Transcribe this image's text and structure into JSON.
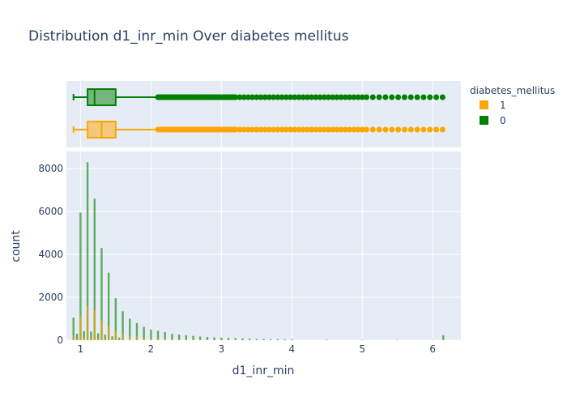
{
  "chart_data": {
    "type": "histogram",
    "title": "Distribution d1_inr_min Over diabetes mellitus",
    "xlabel": "d1_inr_min",
    "ylabel": "count",
    "xlim": [
      0.8,
      6.4
    ],
    "ylim": [
      0,
      8800
    ],
    "x_ticks": [
      1,
      2,
      3,
      4,
      5,
      6
    ],
    "y_ticks": [
      0,
      2000,
      4000,
      6000,
      8000
    ],
    "legend": {
      "title": "diabetes_mellitus",
      "position": "top-right",
      "entries": [
        "1",
        "0"
      ]
    },
    "colors": {
      "1": "#FFA500",
      "0": "#008000",
      "plot_bg": "#E5ECF6",
      "grid": "#FFFFFF",
      "text": "#2A3F5F"
    },
    "histogram": {
      "bin_edges_note": "0.05 width bins",
      "x": [
        0.9,
        0.95,
        1.0,
        1.05,
        1.1,
        1.15,
        1.2,
        1.25,
        1.3,
        1.35,
        1.4,
        1.45,
        1.5,
        1.55,
        1.6,
        1.7,
        1.8,
        1.9,
        2.0,
        2.1,
        2.2,
        2.3,
        2.4,
        2.5,
        2.6,
        2.7,
        2.8,
        2.9,
        3.0,
        3.1,
        3.2,
        3.3,
        3.4,
        3.5,
        3.6,
        3.7,
        3.8,
        3.9,
        4.0,
        4.5,
        5.0,
        5.5,
        6.0,
        6.15
      ],
      "series": [
        {
          "name": "0",
          "values": [
            1050,
            300,
            5950,
            420,
            8300,
            400,
            6600,
            320,
            4300,
            260,
            3150,
            180,
            1960,
            120,
            1350,
            1000,
            800,
            620,
            500,
            440,
            380,
            300,
            260,
            230,
            200,
            170,
            150,
            130,
            120,
            100,
            90,
            80,
            70,
            60,
            55,
            50,
            45,
            40,
            35,
            25,
            20,
            15,
            10,
            230
          ]
        },
        {
          "name": "1",
          "values": [
            220,
            60,
            1150,
            90,
            1600,
            90,
            1400,
            70,
            900,
            60,
            650,
            40,
            420,
            30,
            290,
            210,
            170,
            130,
            100,
            90,
            80,
            60,
            50,
            45,
            40,
            35,
            30,
            25,
            25,
            20,
            18,
            16,
            14,
            12,
            11,
            10,
            9,
            8,
            7,
            5,
            4,
            3,
            2,
            40
          ]
        }
      ]
    },
    "box": [
      {
        "name": "0",
        "min": 0.9,
        "q1": 1.1,
        "median": 1.2,
        "q3": 1.5,
        "upper_fence": 2.1,
        "max": 6.15
      },
      {
        "name": "1",
        "min": 0.9,
        "q1": 1.1,
        "median": 1.3,
        "q3": 1.5,
        "upper_fence": 2.1,
        "max": 6.15
      }
    ]
  }
}
